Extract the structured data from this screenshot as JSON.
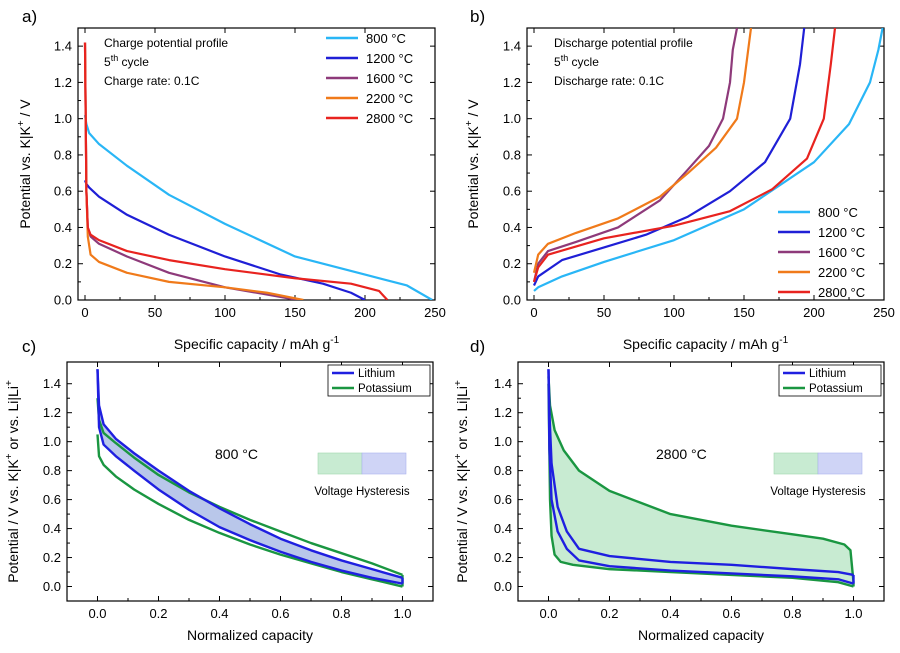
{
  "panels": [
    {
      "letter": "a)",
      "annotation_lines": [
        "Charge potential profile",
        "5",
        "th",
        " cycle",
        "Charge rate: 0.1C"
      ],
      "xlabel": "Specific capacity / mAh g",
      "xlabel_sup": "-1",
      "ylabel": "Potential vs. K|K",
      "ylabel_sup": "+",
      "ylabel_tail": " / V"
    },
    {
      "letter": "b)",
      "annotation_lines": [
        "Discharge potential profile",
        "5",
        "th",
        " cycle",
        "Discharge rate: 0.1C"
      ],
      "xlabel": "Specific capacity / mAh g",
      "xlabel_sup": "-1",
      "ylabel": "Potential vs. K|K",
      "ylabel_sup": "+",
      "ylabel_tail": " / V"
    },
    {
      "letter": "c)",
      "temperature_label": "800 °C",
      "hysteresis_label": "Voltage Hysteresis",
      "xlabel": "Normalized capacity",
      "ylabel": "Potential  / V vs. K|K",
      "ylabel_sup": "+",
      "ylabel_mid": " or vs. Li|Li",
      "ylabel_sup2": "+"
    },
    {
      "letter": "d)",
      "temperature_label": "2800 °C",
      "hysteresis_label": "Voltage Hysteresis",
      "xlabel": "Normalized capacity",
      "ylabel": "Potential  / V vs. K|K",
      "ylabel_sup": "+",
      "ylabel_mid": " or vs. Li|Li",
      "ylabel_sup2": "+"
    }
  ],
  "colors": {
    "t800": "#29b6f6",
    "t1200": "#1f1fd6",
    "t1600": "#8e3a7a",
    "t2200": "#f07a1a",
    "t2800": "#e8231f",
    "lithium": "#1f1fe0",
    "potassium": "#1a9641",
    "lithium_fill": "#b9c7ea",
    "potassium_fill": "#c8ebd2"
  },
  "chart_data": [
    {
      "type": "line",
      "title": "Charge potential profile, 5th cycle, Charge rate: 0.1C",
      "xlabel": "Specific capacity / mAh g-1",
      "ylabel": "Potential vs. K|K+ / V",
      "xlim": [
        -5,
        250
      ],
      "ylim": [
        0,
        1.5
      ],
      "xticks": [
        0,
        50,
        100,
        150,
        200,
        250
      ],
      "yticks": [
        0.0,
        0.2,
        0.4,
        0.6,
        0.8,
        1.0,
        1.2,
        1.4
      ],
      "legend_position": "top-right",
      "series": [
        {
          "name": "800 °C",
          "color_key": "t800",
          "x": [
            0,
            1,
            3,
            10,
            30,
            60,
            100,
            150,
            200,
            230,
            248
          ],
          "y": [
            1.02,
            0.97,
            0.92,
            0.86,
            0.74,
            0.58,
            0.42,
            0.24,
            0.14,
            0.08,
            0.0
          ]
        },
        {
          "name": "1200 °C",
          "color_key": "t1200",
          "x": [
            0,
            1,
            3,
            10,
            30,
            60,
            100,
            140,
            170,
            190,
            200
          ],
          "y": [
            0.66,
            0.64,
            0.62,
            0.57,
            0.47,
            0.36,
            0.24,
            0.14,
            0.09,
            0.04,
            0.0
          ]
        },
        {
          "name": "1600 °C",
          "color_key": "t1600",
          "x": [
            0,
            0.5,
            1,
            2,
            4,
            10,
            30,
            60,
            100,
            130,
            152
          ],
          "y": [
            1.42,
            1.0,
            0.6,
            0.4,
            0.35,
            0.31,
            0.24,
            0.15,
            0.07,
            0.03,
            0.0
          ]
        },
        {
          "name": "2200 °C",
          "color_key": "t2200",
          "x": [
            0,
            0.5,
            1,
            2,
            4,
            10,
            30,
            60,
            100,
            130,
            156
          ],
          "y": [
            1.42,
            1.0,
            0.6,
            0.35,
            0.25,
            0.21,
            0.15,
            0.1,
            0.07,
            0.04,
            0.0
          ]
        },
        {
          "name": "2800 °C",
          "color_key": "t2800",
          "x": [
            0,
            0.5,
            1,
            2,
            4,
            10,
            30,
            60,
            100,
            150,
            190,
            210,
            216
          ],
          "y": [
            1.42,
            1.0,
            0.6,
            0.4,
            0.36,
            0.33,
            0.27,
            0.22,
            0.17,
            0.12,
            0.09,
            0.05,
            0.0
          ]
        }
      ]
    },
    {
      "type": "line",
      "title": "Discharge potential profile, 5th cycle, Discharge rate: 0.1C",
      "xlabel": "Specific capacity / mAh g-1",
      "ylabel": "Potential vs. K|K+ / V",
      "xlim": [
        -5,
        250
      ],
      "ylim": [
        0,
        1.5
      ],
      "xticks": [
        0,
        50,
        100,
        150,
        200,
        250
      ],
      "yticks": [
        0.0,
        0.2,
        0.4,
        0.6,
        0.8,
        1.0,
        1.2,
        1.4
      ],
      "legend_position": "bottom-right",
      "series": [
        {
          "name": "800 °C",
          "color_key": "t800",
          "x": [
            0,
            3,
            20,
            50,
            100,
            150,
            200,
            225,
            240,
            246,
            249
          ],
          "y": [
            0.05,
            0.07,
            0.13,
            0.21,
            0.33,
            0.5,
            0.76,
            0.97,
            1.2,
            1.38,
            1.5
          ]
        },
        {
          "name": "1200 °C",
          "color_key": "t1200",
          "x": [
            0,
            3,
            20,
            50,
            80,
            110,
            140,
            165,
            183,
            190,
            193
          ],
          "y": [
            0.08,
            0.13,
            0.22,
            0.29,
            0.36,
            0.46,
            0.6,
            0.76,
            1.0,
            1.3,
            1.5
          ]
        },
        {
          "name": "1600 °C",
          "color_key": "t1600",
          "x": [
            0,
            3,
            10,
            30,
            60,
            90,
            110,
            125,
            135,
            140,
            142,
            145
          ],
          "y": [
            0.1,
            0.2,
            0.27,
            0.32,
            0.4,
            0.55,
            0.72,
            0.85,
            1.0,
            1.2,
            1.38,
            1.5
          ]
        },
        {
          "name": "2200 °C",
          "color_key": "t2200",
          "x": [
            0,
            3,
            10,
            30,
            60,
            90,
            110,
            130,
            145,
            150,
            153,
            155
          ],
          "y": [
            0.15,
            0.25,
            0.31,
            0.37,
            0.45,
            0.57,
            0.7,
            0.84,
            1.0,
            1.2,
            1.38,
            1.5
          ]
        },
        {
          "name": "2800 °C",
          "color_key": "t2800",
          "x": [
            0,
            3,
            10,
            50,
            100,
            140,
            170,
            195,
            207,
            212,
            215
          ],
          "y": [
            0.1,
            0.18,
            0.25,
            0.34,
            0.41,
            0.49,
            0.61,
            0.78,
            1.0,
            1.3,
            1.5
          ]
        }
      ]
    },
    {
      "type": "line",
      "xlabel": "Normalized capacity",
      "ylabel": "Potential / V vs. K|K+ or vs. Li|Li+",
      "xlim": [
        -0.1,
        1.1
      ],
      "ylim": [
        -0.1,
        1.55
      ],
      "xticks": [
        0.0,
        0.2,
        0.4,
        0.6,
        0.8,
        1.0
      ],
      "yticks": [
        0.0,
        0.2,
        0.4,
        0.6,
        0.8,
        1.0,
        1.2,
        1.4
      ],
      "legend_position": "top-right",
      "series": [
        {
          "name": "Lithium",
          "color_key": "lithium",
          "charge": {
            "x": [
              0.0,
              0.005,
              0.02,
              0.06,
              0.12,
              0.2,
              0.3,
              0.4,
              0.5,
              0.6,
              0.7,
              0.8,
              0.9,
              1.0
            ],
            "y": [
              1.5,
              1.25,
              1.12,
              1.02,
              0.92,
              0.8,
              0.66,
              0.54,
              0.43,
              0.33,
              0.25,
              0.18,
              0.12,
              0.06
            ]
          },
          "discharge": {
            "x": [
              0.0,
              0.005,
              0.02,
              0.06,
              0.12,
              0.2,
              0.3,
              0.4,
              0.5,
              0.6,
              0.7,
              0.8,
              0.9,
              1.0
            ],
            "y": [
              1.5,
              1.1,
              0.98,
              0.9,
              0.8,
              0.67,
              0.53,
              0.41,
              0.32,
              0.24,
              0.17,
              0.11,
              0.06,
              0.02
            ]
          }
        },
        {
          "name": "Potassium",
          "color_key": "potassium",
          "charge": {
            "x": [
              0.0,
              0.005,
              0.02,
              0.06,
              0.12,
              0.2,
              0.3,
              0.4,
              0.5,
              0.6,
              0.7,
              0.8,
              0.9,
              1.0
            ],
            "y": [
              1.3,
              1.15,
              1.06,
              0.99,
              0.89,
              0.77,
              0.65,
              0.55,
              0.46,
              0.38,
              0.3,
              0.23,
              0.16,
              0.08
            ]
          },
          "discharge": {
            "x": [
              0.0,
              0.005,
              0.02,
              0.06,
              0.12,
              0.2,
              0.3,
              0.4,
              0.5,
              0.6,
              0.7,
              0.8,
              0.9,
              1.0
            ],
            "y": [
              1.05,
              0.9,
              0.84,
              0.76,
              0.67,
              0.57,
              0.46,
              0.37,
              0.29,
              0.22,
              0.16,
              0.1,
              0.05,
              0.0
            ]
          }
        }
      ]
    },
    {
      "type": "line",
      "xlabel": "Normalized capacity",
      "ylabel": "Potential / V vs. K|K+ or vs. Li|Li+",
      "xlim": [
        -0.1,
        1.1
      ],
      "ylim": [
        -0.1,
        1.55
      ],
      "xticks": [
        0.0,
        0.2,
        0.4,
        0.6,
        0.8,
        1.0
      ],
      "yticks": [
        0.0,
        0.2,
        0.4,
        0.6,
        0.8,
        1.0,
        1.2,
        1.4
      ],
      "legend_position": "top-right",
      "series": [
        {
          "name": "Lithium",
          "color_key": "lithium",
          "charge": {
            "x": [
              0.0,
              0.003,
              0.01,
              0.03,
              0.06,
              0.1,
              0.2,
              0.4,
              0.6,
              0.8,
              0.95,
              1.0
            ],
            "y": [
              1.5,
              1.2,
              0.85,
              0.55,
              0.38,
              0.26,
              0.21,
              0.17,
              0.15,
              0.12,
              0.1,
              0.08
            ]
          },
          "discharge": {
            "x": [
              0.0,
              0.003,
              0.01,
              0.03,
              0.06,
              0.1,
              0.2,
              0.4,
              0.6,
              0.8,
              0.95,
              1.0
            ],
            "y": [
              1.5,
              0.95,
              0.6,
              0.38,
              0.26,
              0.18,
              0.14,
              0.11,
              0.09,
              0.07,
              0.05,
              0.02
            ]
          }
        },
        {
          "name": "Potassium",
          "color_key": "potassium",
          "charge": {
            "x": [
              0.0,
              0.005,
              0.02,
              0.05,
              0.1,
              0.2,
              0.3,
              0.4,
              0.6,
              0.8,
              0.9,
              0.97,
              0.99,
              1.0
            ],
            "y": [
              1.45,
              1.25,
              1.08,
              0.94,
              0.8,
              0.66,
              0.58,
              0.5,
              0.42,
              0.36,
              0.33,
              0.29,
              0.25,
              0.03
            ]
          },
          "discharge": {
            "x": [
              0.0,
              0.005,
              0.01,
              0.02,
              0.04,
              0.08,
              0.2,
              0.4,
              0.6,
              0.8,
              0.95,
              1.0
            ],
            "y": [
              1.4,
              0.6,
              0.35,
              0.22,
              0.17,
              0.15,
              0.12,
              0.1,
              0.08,
              0.06,
              0.03,
              0.0
            ]
          }
        }
      ]
    }
  ]
}
